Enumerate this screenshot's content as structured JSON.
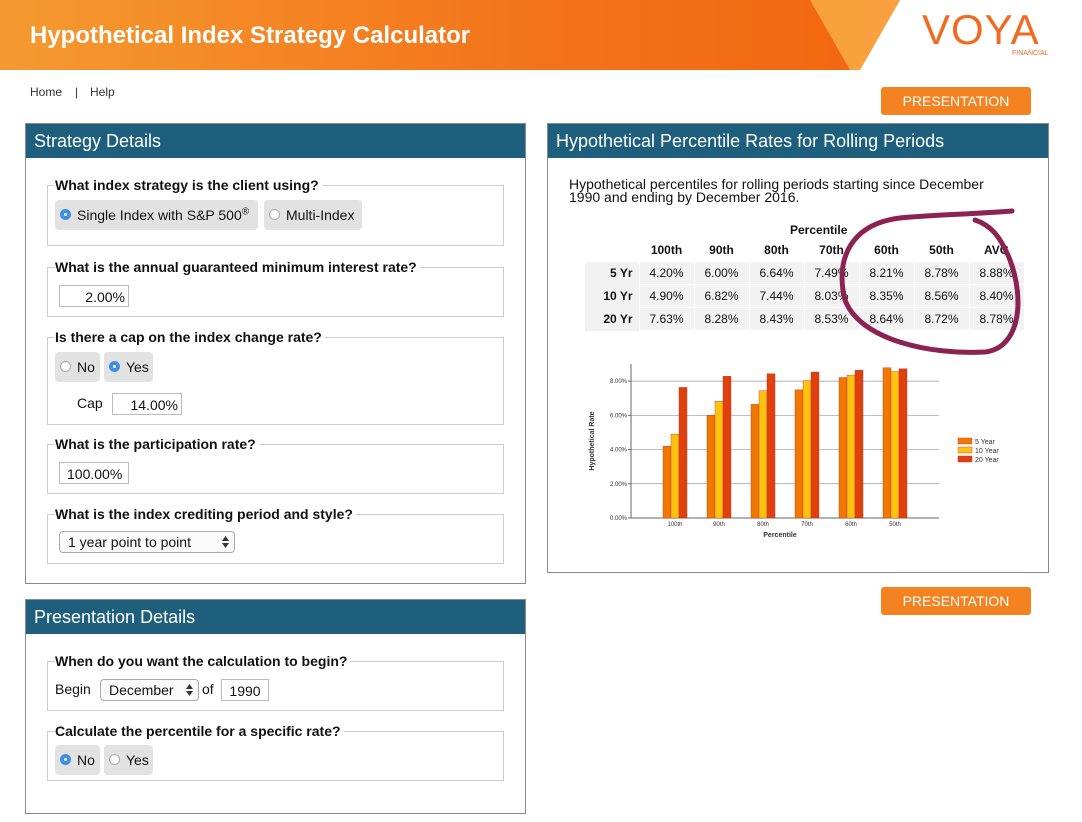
{
  "header": {
    "title": "Hypothetical Index Strategy Calculator",
    "logo": "VOYA",
    "logo_sub": "FINANCIAL"
  },
  "nav": {
    "home": "Home",
    "separator": "|",
    "help": "Help"
  },
  "presentation_button": "PRESENTATION",
  "strategy": {
    "title": "Strategy Details",
    "index_question": "What index strategy is the client using?",
    "index_options": [
      "Single Index with S&P 500",
      "Multi-Index"
    ],
    "registered": "®",
    "min_rate_question": "What is the annual guaranteed minimum interest rate?",
    "min_rate": "2.00%",
    "cap_question": "Is there a cap on the index change rate?",
    "cap_options": [
      "No",
      "Yes"
    ],
    "cap_label": "Cap",
    "cap_value": "14.00%",
    "participation_question": "What is the participation rate?",
    "participation": "100.00%",
    "crediting_question": "What is the index crediting period and style?",
    "crediting": "1 year point to point"
  },
  "presentation": {
    "title": "Presentation Details",
    "begin_question": "When do you want the calculation to begin?",
    "begin_label": "Begin",
    "month": "December",
    "of_label": "of",
    "year": "1990",
    "percentile_question": "Calculate the percentile for a specific rate?",
    "percentile_options": [
      "No",
      "Yes"
    ]
  },
  "results": {
    "title": "Hypothetical Percentile Rates for Rolling Periods",
    "description": "Hypothetical percentiles for rolling periods starting since December 1990 and ending by December 2016.",
    "table": {
      "group_header": "Percentile",
      "columns": [
        "100th",
        "90th",
        "80th",
        "70th",
        "60th",
        "50th",
        "AVG"
      ],
      "rows": [
        {
          "label": "5 Yr",
          "cells": [
            "4.20%",
            "6.00%",
            "6.64%",
            "7.49%",
            "8.21%",
            "8.78%",
            "8.88%"
          ]
        },
        {
          "label": "10 Yr",
          "cells": [
            "4.90%",
            "6.82%",
            "7.44%",
            "8.03%",
            "8.35%",
            "8.56%",
            "8.40%"
          ]
        },
        {
          "label": "20 Yr",
          "cells": [
            "7.63%",
            "8.28%",
            "8.43%",
            "8.53%",
            "8.64%",
            "8.72%",
            "8.78%"
          ]
        }
      ]
    },
    "chart": {
      "type": "bar",
      "y_label": "Hypothetical Rate",
      "x_label": "Percentile",
      "categories": [
        "100th",
        "90th",
        "80th",
        "70th",
        "60th",
        "50th"
      ],
      "series": [
        {
          "name": "5 Year",
          "color": "#f07800",
          "values": [
            4.2,
            6.0,
            6.64,
            7.49,
            8.21,
            8.78
          ]
        },
        {
          "name": "10 Year",
          "color": "#ffc20e",
          "values": [
            4.9,
            6.82,
            7.44,
            8.03,
            8.35,
            8.56
          ]
        },
        {
          "name": "20 Year",
          "color": "#e0400c",
          "values": [
            7.63,
            8.28,
            8.43,
            8.53,
            8.64,
            8.72
          ]
        }
      ],
      "ylim": [
        0,
        9
      ],
      "yticks": [
        {
          "value": 0,
          "label": "0.00%"
        },
        {
          "value": 2,
          "label": "2.00%"
        },
        {
          "value": 4,
          "label": "4.00%"
        },
        {
          "value": 6,
          "label": "6.00%"
        },
        {
          "value": 8,
          "label": "8.00%"
        }
      ],
      "grid": true
    }
  }
}
